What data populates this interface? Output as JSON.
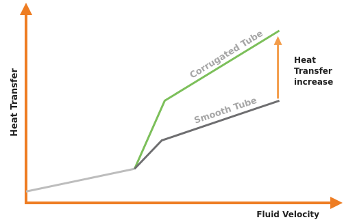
{
  "chart_data": {
    "type": "line",
    "title": "",
    "xlabel": "Fluid Velocity",
    "ylabel": "Heat Transfer",
    "grid": false,
    "colors": {
      "axis": "#ee7d23",
      "baseline": "#bdbdbd",
      "corrugated": "#7cbf5a",
      "smooth": "#6e6e70",
      "annotation_arrow": "#f39c4a"
    },
    "series": [
      {
        "name": "",
        "role": "baseline",
        "x": [
          0,
          0.36
        ],
        "y": [
          0.06,
          0.18
        ]
      },
      {
        "name": "Corrugated Tube",
        "role": "corrugated",
        "x": [
          0.36,
          0.46,
          0.84
        ],
        "y": [
          0.18,
          0.54,
          0.91
        ]
      },
      {
        "name": "Smooth Tube",
        "role": "smooth",
        "x": [
          0.36,
          0.45,
          0.84
        ],
        "y": [
          0.18,
          0.33,
          0.54
        ]
      }
    ],
    "annotations": [
      {
        "text_lines": [
          "Heat",
          "Transfer",
          "increase"
        ],
        "from_series": "Smooth Tube",
        "to_series": "Corrugated Tube"
      }
    ]
  }
}
